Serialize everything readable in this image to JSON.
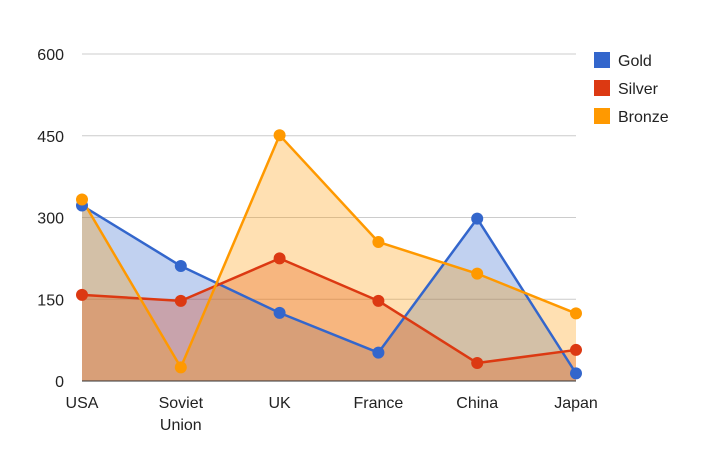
{
  "chart_data": {
    "type": "area",
    "categories": [
      "USA",
      "Soviet\nUnion",
      "UK",
      "France",
      "China",
      "Japan"
    ],
    "series": [
      {
        "name": "Gold",
        "color": "#3366cc",
        "values": [
          322,
          211,
          125,
          52,
          298,
          14
        ]
      },
      {
        "name": "Silver",
        "color": "#dc3912",
        "values": [
          158,
          147,
          225,
          147,
          33,
          57
        ]
      },
      {
        "name": "Bronze",
        "color": "#ff9900",
        "values": [
          333,
          25,
          451,
          255,
          197,
          124
        ]
      }
    ],
    "ylim": [
      0,
      600
    ],
    "yticks": [
      0,
      150,
      300,
      450,
      600
    ],
    "grid": true,
    "legend_position": "right",
    "title": "",
    "xlabel": "",
    "ylabel": ""
  }
}
